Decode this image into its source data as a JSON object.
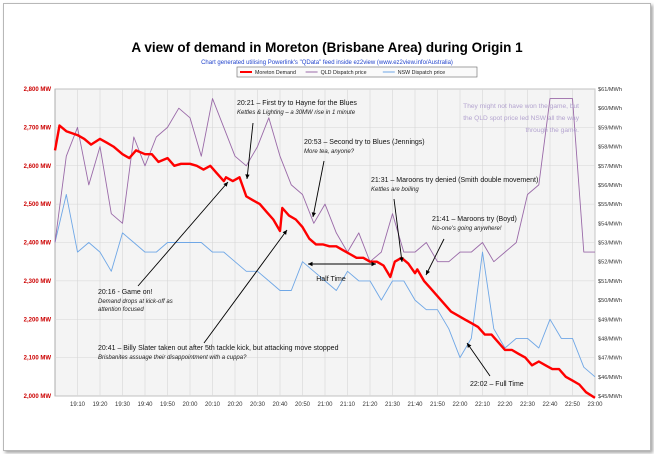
{
  "chart_data": {
    "type": "line",
    "title": "A view of demand in Moreton (Brisbane Area) during Origin 1",
    "subtitle": "Chart generated utilising Powerlink's \"QData\" feed inside ez2view (www.ez2view.info/Australia)",
    "x_ticks": [
      "19:10",
      "19:20",
      "19:30",
      "19:40",
      "19:50",
      "20:00",
      "20:10",
      "20:20",
      "20:30",
      "20:40",
      "20:50",
      "21:00",
      "21:10",
      "21:20",
      "21:30",
      "21:40",
      "21:50",
      "22:00",
      "22:10",
      "22:20",
      "22:30",
      "22:40",
      "22:50",
      "23:00"
    ],
    "y_left": {
      "ticks": [
        "2,000 MW",
        "2,100 MW",
        "2,200 MW",
        "2,300 MW",
        "2,400 MW",
        "2,500 MW",
        "2,600 MW",
        "2,700 MW",
        "2,800 MW"
      ],
      "ylim": [
        2000,
        2800
      ]
    },
    "y_right": {
      "ticks": [
        "$45/MWh",
        "$46/MWh",
        "$47/MWh",
        "$48/MWh",
        "$49/MWh",
        "$50/MWh",
        "$51/MWh",
        "$52/MWh",
        "$53/MWh",
        "$54/MWh",
        "$55/MWh",
        "$56/MWh",
        "$57/MWh",
        "$58/MWh",
        "$59/MWh",
        "$60/MWh",
        "$61/MWh"
      ],
      "ylim": [
        45,
        61
      ]
    },
    "legend": {
      "placement": "top-center"
    },
    "grid": true,
    "series": [
      {
        "name": "Moreton Demand",
        "axis": "left",
        "color": "#ff0000",
        "x": [
          "19:00",
          "19:02",
          "19:05",
          "19:10",
          "19:13",
          "19:16",
          "19:20",
          "19:23",
          "19:26",
          "19:30",
          "19:33",
          "19:36",
          "19:40",
          "19:43",
          "19:46",
          "19:50",
          "19:53",
          "19:56",
          "20:00",
          "20:03",
          "20:06",
          "20:09",
          "20:12",
          "20:15",
          "20:16",
          "20:19",
          "20:22",
          "20:25",
          "20:28",
          "20:31",
          "20:34",
          "20:37",
          "20:40",
          "20:41",
          "20:44",
          "20:47",
          "20:50",
          "20:53",
          "20:56",
          "20:59",
          "21:02",
          "21:05",
          "21:08",
          "21:11",
          "21:14",
          "21:17",
          "21:20",
          "21:23",
          "21:26",
          "21:29",
          "21:31",
          "21:34",
          "21:37",
          "21:40",
          "21:41",
          "21:44",
          "21:47",
          "21:50",
          "21:53",
          "21:56",
          "21:59",
          "22:02",
          "22:05",
          "22:08",
          "22:11",
          "22:14",
          "22:17",
          "22:20",
          "22:23",
          "22:26",
          "22:29",
          "22:32",
          "22:35",
          "22:38",
          "22:41",
          "22:44",
          "22:47",
          "22:50",
          "22:53",
          "22:56",
          "23:00"
        ],
        "values": [
          2640,
          2705,
          2690,
          2680,
          2670,
          2655,
          2670,
          2660,
          2650,
          2630,
          2620,
          2640,
          2630,
          2630,
          2610,
          2620,
          2600,
          2605,
          2605,
          2600,
          2590,
          2600,
          2580,
          2560,
          2570,
          2560,
          2570,
          2520,
          2510,
          2500,
          2480,
          2460,
          2430,
          2490,
          2470,
          2460,
          2440,
          2410,
          2395,
          2395,
          2390,
          2390,
          2380,
          2370,
          2360,
          2360,
          2350,
          2350,
          2340,
          2310,
          2350,
          2360,
          2345,
          2320,
          2330,
          2300,
          2280,
          2260,
          2240,
          2220,
          2210,
          2200,
          2190,
          2180,
          2160,
          2160,
          2140,
          2120,
          2120,
          2110,
          2100,
          2080,
          2090,
          2080,
          2070,
          2070,
          2050,
          2040,
          2030,
          2010,
          1995
        ]
      },
      {
        "name": "QLD Dispatch price",
        "axis": "right",
        "color": "#9a6aa8",
        "x": [
          "19:00",
          "19:05",
          "19:10",
          "19:15",
          "19:20",
          "19:25",
          "19:30",
          "19:35",
          "19:40",
          "19:45",
          "19:50",
          "19:55",
          "20:00",
          "20:05",
          "20:10",
          "20:15",
          "20:20",
          "20:25",
          "20:30",
          "20:35",
          "20:40",
          "20:45",
          "20:50",
          "20:55",
          "21:00",
          "21:05",
          "21:10",
          "21:15",
          "21:20",
          "21:25",
          "21:30",
          "21:35",
          "21:40",
          "21:45",
          "21:50",
          "21:55",
          "22:00",
          "22:05",
          "22:10",
          "22:15",
          "22:20",
          "22:25",
          "22:30",
          "22:35",
          "22:40",
          "22:45",
          "22:50",
          "22:55",
          "23:00"
        ],
        "values": [
          53.0,
          57.5,
          59.0,
          56.0,
          58.0,
          54.5,
          54.0,
          58.5,
          57.0,
          58.5,
          59.0,
          60.0,
          59.5,
          57.5,
          60.5,
          59.0,
          57.5,
          57.0,
          58.0,
          59.5,
          57.5,
          56.0,
          55.5,
          54.0,
          55.0,
          53.5,
          52.5,
          53.5,
          52.0,
          52.5,
          54.5,
          52.5,
          52.5,
          53.0,
          52.0,
          52.0,
          52.5,
          52.5,
          53.0,
          52.0,
          52.5,
          53.0,
          55.5,
          56.0,
          60.5,
          60.5,
          60.5,
          52.5,
          52.5
        ]
      },
      {
        "name": "NSW Dispatch price",
        "axis": "right",
        "color": "#6fa7e6",
        "x": [
          "19:00",
          "19:05",
          "19:10",
          "19:15",
          "19:20",
          "19:25",
          "19:30",
          "19:35",
          "19:40",
          "19:45",
          "19:50",
          "19:55",
          "20:00",
          "20:05",
          "20:10",
          "20:15",
          "20:20",
          "20:25",
          "20:30",
          "20:35",
          "20:40",
          "20:45",
          "20:50",
          "20:55",
          "21:00",
          "21:05",
          "21:10",
          "21:15",
          "21:20",
          "21:25",
          "21:30",
          "21:35",
          "21:40",
          "21:45",
          "21:50",
          "21:55",
          "22:00",
          "22:05",
          "22:10",
          "22:15",
          "22:20",
          "22:25",
          "22:30",
          "22:35",
          "22:40",
          "22:45",
          "22:50",
          "22:55",
          "23:00"
        ],
        "values": [
          53.0,
          55.5,
          52.5,
          53.0,
          52.5,
          51.5,
          53.5,
          53.0,
          52.5,
          52.5,
          53.0,
          53.0,
          53.0,
          53.0,
          52.5,
          52.5,
          52.0,
          51.5,
          51.5,
          51.0,
          50.5,
          50.5,
          52.0,
          51.5,
          51.0,
          50.5,
          51.5,
          51.0,
          51.0,
          50.0,
          51.0,
          51.0,
          50.0,
          49.5,
          49.5,
          48.5,
          47.0,
          48.0,
          52.5,
          48.5,
          47.5,
          48.0,
          48.0,
          47.5,
          49.0,
          48.0,
          48.0,
          46.5,
          46.0
        ]
      }
    ],
    "annotations": [
      {
        "title": "20:16 - Game on!",
        "lines": [
          "Demand drops at kick-off as",
          "attention focused"
        ]
      },
      {
        "title": "20:21 – First try to Hayne for the Blues",
        "lines": [
          "Kettles  & Lighting – a 30MW rise in 1 minute"
        ]
      },
      {
        "title": "20:41 – Billy Slater taken out after 5th tackle kick, but attacking move stopped",
        "lines": [
          "Brisbanites assuage their disappointment with a cuppa?"
        ]
      },
      {
        "title": "20:53 – Second try to Blues (Jennings)",
        "lines": [
          "More tea, anyone?"
        ]
      },
      {
        "title": "Half Time",
        "lines": []
      },
      {
        "title": "21:31 – Maroons try denied (Smith double movement)",
        "lines": [
          "Kettles are boiling"
        ]
      },
      {
        "title": "21:41 – Maroons try (Boyd)",
        "lines": [
          "No-one's going anywhere!"
        ]
      },
      {
        "title": "22:02 – Full Time",
        "lines": []
      },
      {
        "title": "",
        "lines": [
          "They might not have won the game, but",
          "the QLD spot price led NSW all the way",
          "through the game."
        ]
      }
    ]
  }
}
